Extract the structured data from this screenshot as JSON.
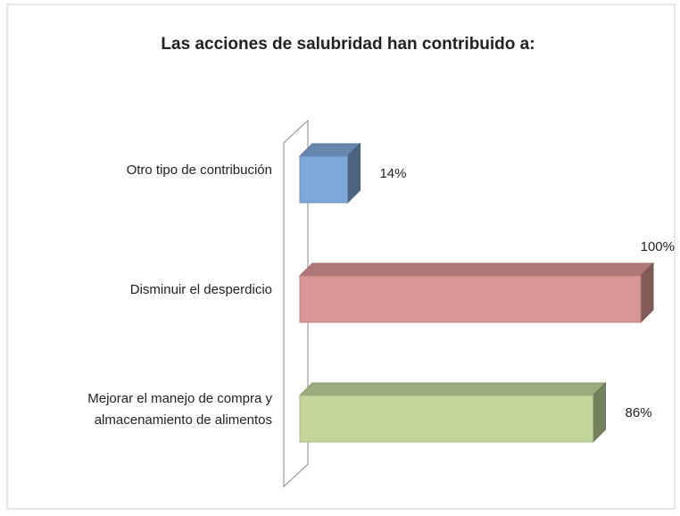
{
  "chart_data": {
    "type": "bar3d-horizontal",
    "title": "Las acciones de salubridad han contribuido a:",
    "categories": [
      "Otro tipo de contribución",
      "Disminuir el desperdicio",
      "Mejorar el manejo de compra y almacenamiento de alimentos"
    ],
    "values": [
      14,
      100,
      86
    ],
    "value_labels": [
      "14%",
      "100%",
      "86%"
    ],
    "colors": [
      "#7fa7d9",
      "#d99694",
      "#c3d69b"
    ],
    "xlim": [
      0,
      100
    ]
  }
}
